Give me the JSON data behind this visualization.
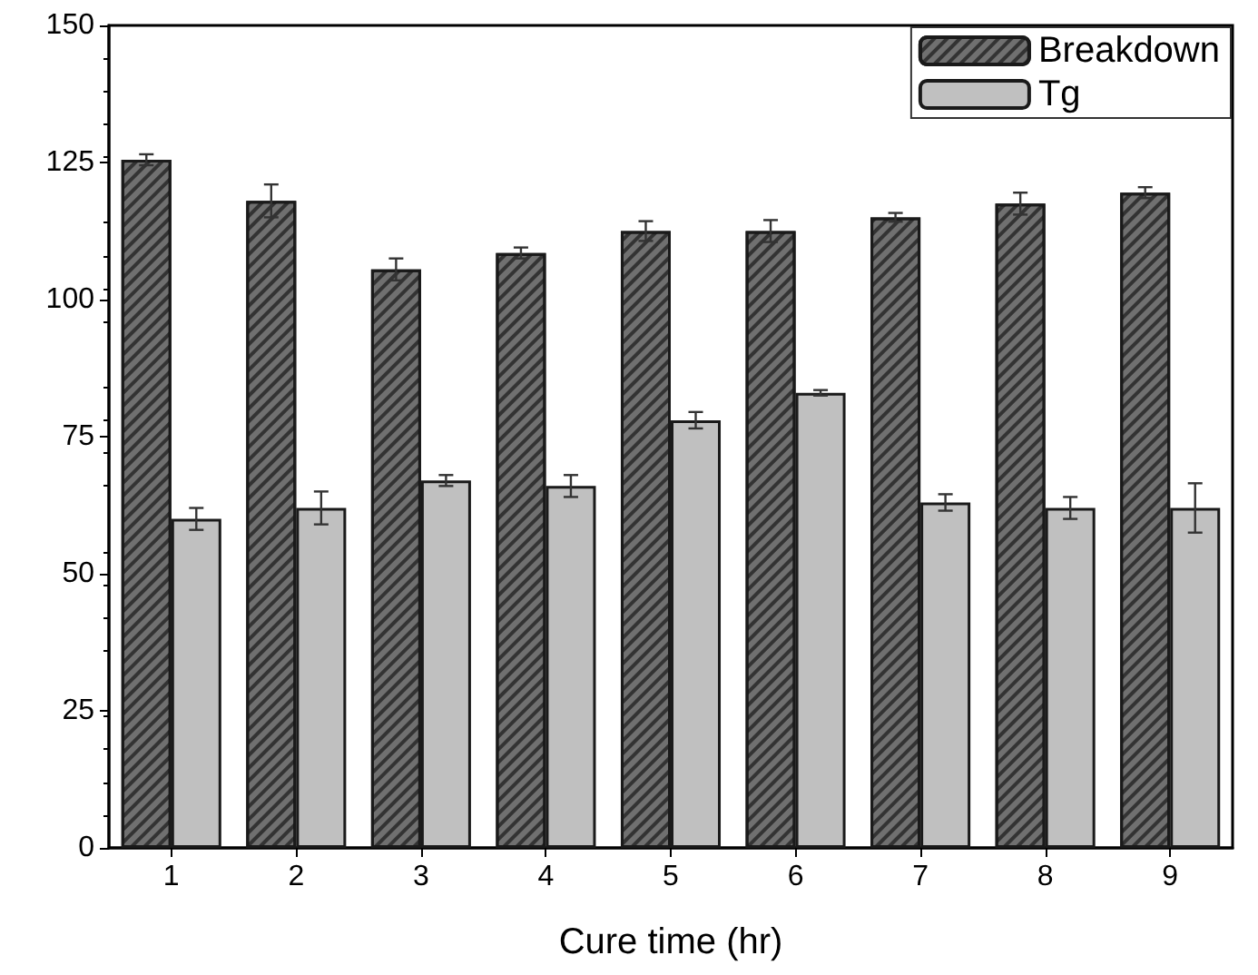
{
  "chart_data": {
    "type": "bar",
    "xlabel": "Cure time (hr)",
    "categories": [
      "1",
      "2",
      "3",
      "4",
      "5",
      "6",
      "7",
      "8",
      "9"
    ],
    "series": [
      {
        "name": "Breakdown",
        "color": "#707070",
        "values": [
          125.5,
          118,
          105.5,
          108.5,
          112.5,
          112.5,
          115,
          117.5,
          119.5
        ],
        "errors": [
          1,
          3,
          2,
          1,
          1.8,
          2,
          0.8,
          2,
          1
        ]
      },
      {
        "name": "Tg",
        "color": "#c0c0c0",
        "values": [
          60,
          62,
          67,
          66,
          78,
          83,
          63,
          62,
          62
        ],
        "errors": [
          2,
          3,
          1,
          2,
          1.5,
          0.5,
          1.5,
          2,
          4.5
        ]
      }
    ],
    "ylim": [
      0,
      150
    ],
    "yticks": [
      0,
      25,
      50,
      75,
      100,
      125,
      150
    ],
    "grid": false,
    "legend": "top right"
  }
}
